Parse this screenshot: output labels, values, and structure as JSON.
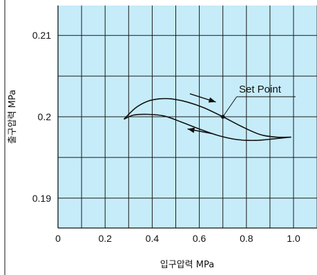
{
  "chart_data": {
    "type": "line",
    "xlabel": "입구압력 MPa",
    "ylabel": "출구압력 MPa",
    "xlim": [
      0,
      1.1
    ],
    "ylim": [
      0.1865,
      0.2135
    ],
    "x_ticks": [
      0,
      0.2,
      0.4,
      0.6,
      0.8,
      1.0
    ],
    "x_tick_labels": [
      "0",
      "0.2",
      "0.4",
      "0.6",
      "0.8",
      "1.0"
    ],
    "y_ticks": [
      0.19,
      0.2,
      0.21
    ],
    "y_tick_labels": [
      "0.19",
      "0.2",
      "0.21"
    ],
    "minor_x_step": 0.1,
    "minor_y_step": 0.005,
    "grid": true,
    "legend": "none",
    "colors": {
      "plot_background": "#c6ecf9",
      "grid": "#1a1a1a",
      "line": "#111111"
    },
    "series": [
      {
        "direction": "increasing",
        "x": [
          0.28,
          0.33,
          0.38,
          0.43,
          0.48,
          0.55,
          0.62,
          0.7,
          0.78,
          0.86,
          0.93,
          0.99
        ],
        "y": [
          0.1997,
          0.2011,
          0.2019,
          0.2022,
          0.2022,
          0.2018,
          0.2011,
          0.2,
          0.1988,
          0.1978,
          0.1975,
          0.1975
        ]
      },
      {
        "direction": "decreasing",
        "x": [
          0.99,
          0.92,
          0.84,
          0.76,
          0.68,
          0.6,
          0.52,
          0.45,
          0.38,
          0.32,
          0.28
        ],
        "y": [
          0.1975,
          0.1973,
          0.1971,
          0.1972,
          0.1977,
          0.1985,
          0.1994,
          0.2001,
          0.2003,
          0.2002,
          0.1997
        ]
      }
    ],
    "annotations": [
      {
        "text": "Set Point",
        "x": 0.7,
        "y": 0.2,
        "marker": "dot"
      }
    ],
    "arrows": [
      {
        "from": [
          0.56,
          0.20283
        ],
        "to": [
          0.67,
          0.20181
        ]
      },
      {
        "from": [
          0.66,
          0.1979
        ],
        "to": [
          0.55,
          0.1985
        ]
      }
    ]
  }
}
